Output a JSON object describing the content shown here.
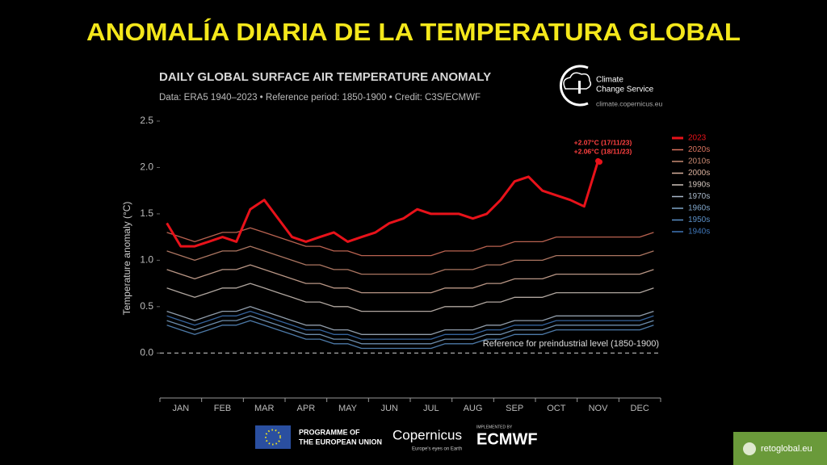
{
  "page_title": "ANOMALÍA DIARIA DE LA TEMPERATURA GLOBAL",
  "chart_data": {
    "type": "line",
    "title": "DAILY GLOBAL SURFACE AIR TEMPERATURE ANOMALY",
    "subtitle": "Data: ERA5 1940–2023 • Reference period: 1850-1900 • Credit: C3S/ECMWF",
    "y_label": "Temperature anomaly (°C)",
    "categories": [
      null,
      "JAN",
      null,
      null,
      "FEB",
      null,
      null,
      "MAR",
      null,
      null,
      "APR",
      null,
      null,
      "MAY",
      null,
      null,
      "JUN",
      null,
      null,
      "JUL",
      null,
      null,
      "AUG",
      null,
      null,
      "SEP",
      null,
      null,
      "OCT",
      null,
      null,
      "NOV",
      null,
      null,
      "DEC",
      null
    ],
    "ylim": [
      -0.45,
      2.5
    ],
    "yticks": [
      {
        "value": 0,
        "label": "0.0"
      },
      0.5,
      {
        "value": 1,
        "label": "1.0"
      },
      1.5,
      {
        "value": 2,
        "label": "2.0"
      },
      2.5
    ],
    "legend": "upper right",
    "series": [
      {
        "name": "2023",
        "color": "#e8121a",
        "values": [
          1.4,
          1.15,
          1.15,
          1.2,
          1.25,
          1.2,
          1.55,
          1.65,
          1.45,
          1.25,
          1.2,
          1.25,
          1.3,
          1.2,
          1.25,
          1.3,
          1.4,
          1.45,
          1.55,
          1.5,
          1.5,
          1.5,
          1.45,
          1.5,
          1.65,
          1.85,
          1.9,
          1.75,
          1.7,
          1.65,
          1.58,
          2.07,
          null,
          null,
          null,
          null
        ]
      },
      {
        "name": "2020s",
        "color": "#d9735e",
        "values": [
          1.3,
          1.25,
          1.2,
          1.25,
          1.3,
          1.3,
          1.35,
          1.3,
          1.25,
          1.2,
          1.15,
          1.15,
          1.1,
          1.1,
          1.05,
          1.05,
          1.05,
          1.05,
          1.05,
          1.05,
          1.1,
          1.1,
          1.1,
          1.15,
          1.15,
          1.2,
          1.2,
          1.2,
          1.25,
          1.25,
          1.25,
          1.25,
          1.25,
          1.25,
          1.25,
          1.3
        ]
      },
      {
        "name": "2010s",
        "color": "#c98a72",
        "values": [
          1.1,
          1.05,
          1.0,
          1.05,
          1.1,
          1.1,
          1.15,
          1.1,
          1.05,
          1.0,
          0.95,
          0.95,
          0.9,
          0.9,
          0.85,
          0.85,
          0.85,
          0.85,
          0.85,
          0.85,
          0.9,
          0.9,
          0.9,
          0.95,
          0.95,
          1.0,
          1.0,
          1.0,
          1.05,
          1.05,
          1.05,
          1.05,
          1.05,
          1.05,
          1.05,
          1.1
        ]
      },
      {
        "name": "2000s",
        "color": "#d9b09c",
        "values": [
          0.9,
          0.85,
          0.8,
          0.85,
          0.9,
          0.9,
          0.95,
          0.9,
          0.85,
          0.8,
          0.75,
          0.75,
          0.7,
          0.7,
          0.65,
          0.65,
          0.65,
          0.65,
          0.65,
          0.65,
          0.7,
          0.7,
          0.7,
          0.75,
          0.75,
          0.8,
          0.8,
          0.8,
          0.85,
          0.85,
          0.85,
          0.85,
          0.85,
          0.85,
          0.85,
          0.9
        ]
      },
      {
        "name": "1990s",
        "color": "#cfc3bb",
        "values": [
          0.7,
          0.65,
          0.6,
          0.65,
          0.7,
          0.7,
          0.75,
          0.7,
          0.65,
          0.6,
          0.55,
          0.55,
          0.5,
          0.5,
          0.45,
          0.45,
          0.45,
          0.45,
          0.45,
          0.45,
          0.5,
          0.5,
          0.5,
          0.55,
          0.55,
          0.6,
          0.6,
          0.6,
          0.65,
          0.65,
          0.65,
          0.65,
          0.65,
          0.65,
          0.65,
          0.7
        ]
      },
      {
        "name": "1970s",
        "color": "#a9b8c9",
        "values": [
          0.45,
          0.4,
          0.35,
          0.4,
          0.45,
          0.45,
          0.5,
          0.45,
          0.4,
          0.35,
          0.3,
          0.3,
          0.25,
          0.25,
          0.2,
          0.2,
          0.2,
          0.2,
          0.2,
          0.2,
          0.25,
          0.25,
          0.25,
          0.3,
          0.3,
          0.35,
          0.35,
          0.35,
          0.4,
          0.4,
          0.4,
          0.4,
          0.4,
          0.4,
          0.4,
          0.45
        ]
      },
      {
        "name": "1960s",
        "color": "#7fa5c9",
        "values": [
          0.35,
          0.3,
          0.25,
          0.3,
          0.35,
          0.35,
          0.4,
          0.35,
          0.3,
          0.25,
          0.2,
          0.2,
          0.15,
          0.15,
          0.1,
          0.1,
          0.1,
          0.1,
          0.1,
          0.1,
          0.15,
          0.15,
          0.15,
          0.2,
          0.2,
          0.25,
          0.25,
          0.25,
          0.3,
          0.3,
          0.3,
          0.3,
          0.3,
          0.3,
          0.3,
          0.35
        ]
      },
      {
        "name": "1950s",
        "color": "#5b8fc6",
        "values": [
          0.3,
          0.25,
          0.2,
          0.25,
          0.3,
          0.3,
          0.35,
          0.3,
          0.25,
          0.2,
          0.15,
          0.15,
          0.1,
          0.1,
          0.05,
          0.05,
          0.05,
          0.05,
          0.05,
          0.05,
          0.1,
          0.1,
          0.1,
          0.15,
          0.15,
          0.2,
          0.2,
          0.2,
          0.25,
          0.25,
          0.25,
          0.25,
          0.25,
          0.25,
          0.25,
          0.3
        ]
      },
      {
        "name": "1940s",
        "color": "#3f76b8",
        "values": [
          0.4,
          0.35,
          0.3,
          0.35,
          0.4,
          0.4,
          0.45,
          0.4,
          0.35,
          0.3,
          0.25,
          0.25,
          0.2,
          0.2,
          0.15,
          0.15,
          0.15,
          0.15,
          0.15,
          0.15,
          0.2,
          0.2,
          0.2,
          0.25,
          0.25,
          0.3,
          0.3,
          0.3,
          0.35,
          0.35,
          0.35,
          0.35,
          0.35,
          0.35,
          0.35,
          0.4
        ]
      }
    ],
    "annotations": [
      {
        "label": "+2.07°C (17/11/23)",
        "value": 2.07
      },
      {
        "label": "+2.06°C (18/11/23)",
        "value": 2.06
      }
    ],
    "reference": {
      "label": "Reference for preindustrial level (1850-1900)",
      "value": 0
    }
  },
  "logo": {
    "name_line1": "Climate",
    "name_line2": "Change Service",
    "url": "climate.copernicus.eu"
  },
  "footer": {
    "eu_line1": "PROGRAMME OF",
    "eu_line2": "THE EUROPEAN UNION",
    "copernicus": "Copernicus",
    "copernicus_tagline": "Europe's eyes on Earth",
    "implemented": "IMPLEMENTED BY",
    "ecmwf": "ECMWF",
    "site": "retoglobal.eu"
  }
}
